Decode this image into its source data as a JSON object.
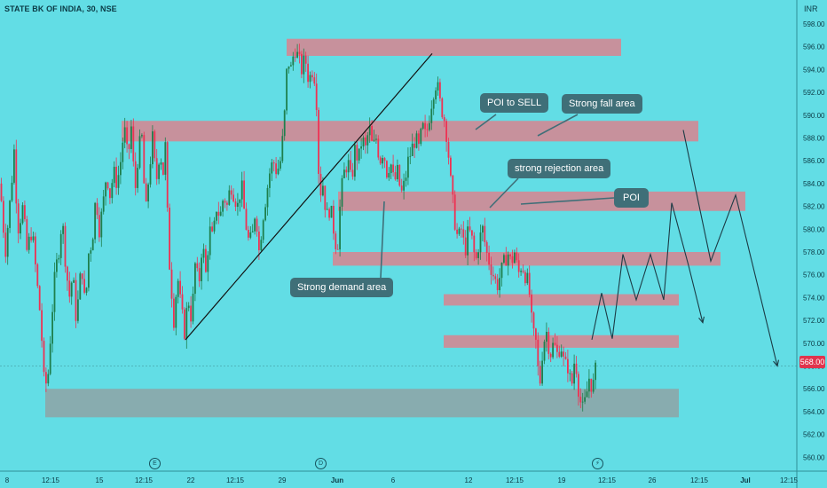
{
  "title": "STATE BK OF INDIA, 30, NSE",
  "currency": "INR",
  "last_price": "568.00",
  "callouts": {
    "poi_to_sell": "POI to SELL",
    "strong_fall_area": "Strong fall area",
    "strong_rejection_area": "strong rejection area",
    "poi": "POI",
    "strong_demand_area": "Strong demand area"
  },
  "event_icons": [
    {
      "label": "E",
      "name": "earnings-icon"
    },
    {
      "label": "D",
      "name": "dividend-icon"
    },
    {
      "label": "⚡",
      "name": "split-icon"
    }
  ],
  "colors": {
    "background": "#62dde5",
    "up": "#1e7f4d",
    "down": "#ee3253",
    "supply_zone": "#d9848f",
    "demand_zone": "#8fa3a6",
    "callout": "#3f6f78"
  },
  "chart_data": {
    "type": "candlestick",
    "title": "STATE BK OF INDIA, 30, NSE",
    "ylabel": "INR",
    "ylim": [
      558,
      600
    ],
    "y_ticks": [
      "598.00",
      "596.00",
      "594.00",
      "592.00",
      "590.00",
      "588.00",
      "586.00",
      "584.00",
      "582.00",
      "580.00",
      "578.00",
      "576.00",
      "574.00",
      "572.00",
      "570.00",
      "568.00",
      "566.00",
      "564.00",
      "562.00",
      "560.00"
    ],
    "x_ticks": [
      "8",
      "12:15",
      "15",
      "12:15",
      "22",
      "12:15",
      "29",
      "Jun",
      "6",
      "12",
      "12:15",
      "19",
      "12:15",
      "26",
      "12:15",
      "Jul",
      "12:15"
    ],
    "last_price": 568.0,
    "price_path": [
      [
        0,
        584
      ],
      [
        6,
        578
      ],
      [
        12,
        583
      ],
      [
        16,
        587
      ],
      [
        20,
        580
      ],
      [
        26,
        582
      ],
      [
        30,
        578
      ],
      [
        36,
        580
      ],
      [
        42,
        575
      ],
      [
        46,
        572
      ],
      [
        50,
        566
      ],
      [
        54,
        567
      ],
      [
        58,
        572
      ],
      [
        62,
        576
      ],
      [
        66,
        578
      ],
      [
        70,
        581
      ],
      [
        74,
        577
      ],
      [
        78,
        574
      ],
      [
        82,
        576
      ],
      [
        86,
        572
      ],
      [
        92,
        577
      ],
      [
        96,
        573
      ],
      [
        100,
        578
      ],
      [
        104,
        579
      ],
      [
        108,
        583
      ],
      [
        112,
        580
      ],
      [
        116,
        582
      ],
      [
        120,
        585
      ],
      [
        124,
        583
      ],
      [
        128,
        585
      ],
      [
        132,
        584
      ],
      [
        136,
        586
      ],
      [
        140,
        589
      ],
      [
        144,
        586
      ],
      [
        148,
        589
      ],
      [
        152,
        583
      ],
      [
        156,
        587
      ],
      [
        160,
        588
      ],
      [
        164,
        581
      ],
      [
        168,
        585
      ],
      [
        172,
        588
      ],
      [
        176,
        584
      ],
      [
        180,
        587
      ],
      [
        184,
        585
      ],
      [
        186,
        588
      ],
      [
        190,
        578
      ],
      [
        194,
        574
      ],
      [
        196,
        572
      ],
      [
        200,
        576
      ],
      [
        204,
        573
      ],
      [
        208,
        571
      ],
      [
        212,
        574
      ],
      [
        216,
        572
      ],
      [
        220,
        577
      ],
      [
        224,
        575
      ],
      [
        228,
        579
      ],
      [
        232,
        576
      ],
      [
        236,
        580
      ],
      [
        240,
        579
      ],
      [
        244,
        582
      ],
      [
        248,
        581
      ],
      [
        252,
        583
      ],
      [
        256,
        582
      ],
      [
        260,
        584
      ],
      [
        264,
        583
      ],
      [
        268,
        582
      ],
      [
        272,
        584
      ],
      [
        276,
        581
      ],
      [
        280,
        579
      ],
      [
        284,
        579
      ],
      [
        288,
        582
      ],
      [
        292,
        578
      ],
      [
        296,
        581
      ],
      [
        300,
        583
      ],
      [
        304,
        585
      ],
      [
        308,
        586
      ],
      [
        312,
        585
      ],
      [
        316,
        586
      ],
      [
        320,
        589
      ],
      [
        324,
        595
      ],
      [
        328,
        594
      ],
      [
        332,
        596
      ],
      [
        336,
        595
      ],
      [
        340,
        594
      ],
      [
        344,
        595
      ],
      [
        348,
        593
      ],
      [
        352,
        594
      ],
      [
        356,
        593
      ],
      [
        360,
        583
      ],
      [
        364,
        584
      ],
      [
        368,
        581
      ],
      [
        372,
        582
      ],
      [
        376,
        580
      ],
      [
        380,
        578
      ],
      [
        384,
        583
      ],
      [
        388,
        585
      ],
      [
        392,
        586
      ],
      [
        396,
        584
      ],
      [
        400,
        587
      ],
      [
        404,
        586
      ],
      [
        408,
        588
      ],
      [
        412,
        587
      ],
      [
        416,
        589
      ],
      [
        420,
        587
      ],
      [
        424,
        588
      ],
      [
        428,
        586
      ],
      [
        432,
        587
      ],
      [
        436,
        585
      ],
      [
        440,
        586
      ],
      [
        444,
        584
      ],
      [
        448,
        585
      ],
      [
        452,
        583
      ],
      [
        456,
        584
      ],
      [
        460,
        586
      ],
      [
        464,
        587
      ],
      [
        468,
        588
      ],
      [
        472,
        587
      ],
      [
        476,
        589
      ],
      [
        480,
        588
      ],
      [
        484,
        590
      ],
      [
        488,
        592
      ],
      [
        492,
        593
      ],
      [
        496,
        591
      ],
      [
        500,
        590
      ],
      [
        504,
        588
      ],
      [
        508,
        584
      ],
      [
        512,
        581
      ],
      [
        516,
        579
      ],
      [
        520,
        580
      ],
      [
        524,
        578
      ],
      [
        528,
        580
      ],
      [
        532,
        579
      ],
      [
        536,
        577
      ],
      [
        540,
        579
      ],
      [
        544,
        580
      ],
      [
        548,
        578
      ],
      [
        552,
        577
      ],
      [
        556,
        576
      ],
      [
        560,
        575
      ],
      [
        564,
        576
      ],
      [
        568,
        577
      ],
      [
        572,
        578
      ],
      [
        576,
        577
      ],
      [
        580,
        578
      ],
      [
        584,
        576
      ],
      [
        588,
        577
      ],
      [
        592,
        576
      ],
      [
        596,
        575
      ],
      [
        600,
        571
      ],
      [
        604,
        570
      ],
      [
        608,
        566
      ],
      [
        612,
        570
      ],
      [
        616,
        571
      ],
      [
        620,
        569
      ],
      [
        624,
        570
      ],
      [
        628,
        569
      ],
      [
        632,
        570
      ],
      [
        636,
        568
      ],
      [
        640,
        568
      ],
      [
        644,
        566
      ],
      [
        648,
        569
      ],
      [
        652,
        566
      ],
      [
        656,
        564
      ],
      [
        660,
        565
      ],
      [
        664,
        567
      ],
      [
        668,
        566
      ],
      [
        672,
        568
      ]
    ],
    "zones": [
      {
        "kind": "supply",
        "y_top": 596.7,
        "y_bottom": 595.2,
        "x_start": 323,
        "x_end": 700
      },
      {
        "kind": "supply",
        "y_top": 589.5,
        "y_bottom": 587.7,
        "x_start": 137,
        "x_end": 787
      },
      {
        "kind": "supply",
        "y_top": 583.3,
        "y_bottom": 581.6,
        "x_start": 381,
        "x_end": 840
      },
      {
        "kind": "supply",
        "y_top": 578.0,
        "y_bottom": 576.8,
        "x_start": 375,
        "x_end": 812
      },
      {
        "kind": "supply",
        "y_top": 574.3,
        "y_bottom": 573.3,
        "x_start": 500,
        "x_end": 765
      },
      {
        "kind": "supply",
        "y_top": 570.7,
        "y_bottom": 569.6,
        "x_start": 500,
        "x_end": 765
      },
      {
        "kind": "demand",
        "y_top": 566.0,
        "y_bottom": 563.5,
        "x_start": 51,
        "x_end": 765
      }
    ],
    "trendline": [
      [
        209,
        570.3
      ],
      [
        487,
        595.4
      ]
    ],
    "projections": [
      [
        [
          667,
          570.3
        ],
        [
          678,
          574.4
        ],
        [
          690,
          570.4
        ],
        [
          702,
          577.8
        ],
        [
          717,
          573.8
        ],
        [
          733,
          577.8
        ],
        [
          748,
          573.8
        ],
        [
          757,
          582.3
        ],
        [
          776,
          576.8
        ],
        [
          792,
          571.8
        ]
      ],
      [
        [
          770,
          588.7
        ],
        [
          801,
          577.2
        ],
        [
          829,
          583.0
        ],
        [
          876,
          568.0
        ]
      ]
    ]
  }
}
